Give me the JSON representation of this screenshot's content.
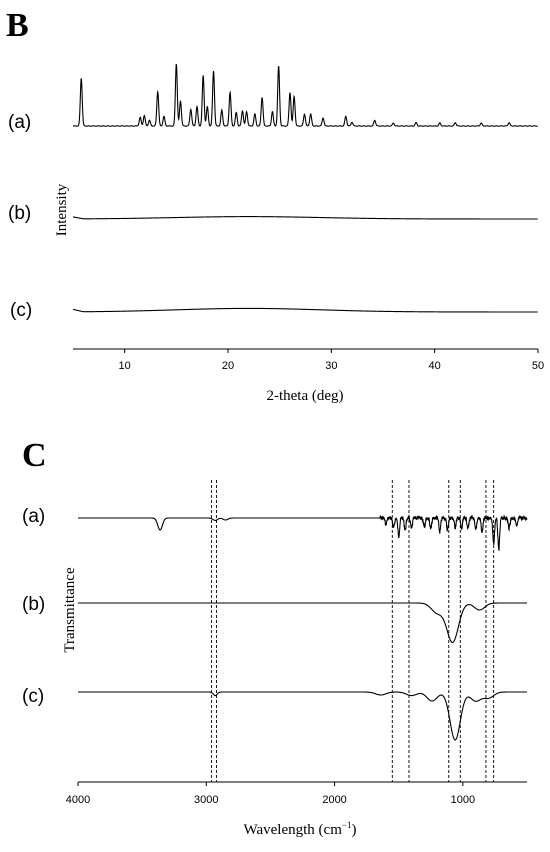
{
  "chart_data": [
    {
      "type": "line",
      "panel": "B",
      "xlabel": "2-theta (deg)",
      "ylabel": "Intensity",
      "xlim": [
        5,
        50
      ],
      "xticks": [
        10,
        20,
        30,
        40,
        50
      ],
      "series": [
        {
          "name": "(a)",
          "peaks": [
            {
              "x": 5.8,
              "y": 1.0
            },
            {
              "x": 11.5,
              "y": 0.18
            },
            {
              "x": 11.9,
              "y": 0.22
            },
            {
              "x": 12.4,
              "y": 0.12
            },
            {
              "x": 13.2,
              "y": 0.72
            },
            {
              "x": 13.8,
              "y": 0.2
            },
            {
              "x": 15.0,
              "y": 1.3
            },
            {
              "x": 15.4,
              "y": 0.52
            },
            {
              "x": 16.4,
              "y": 0.35
            },
            {
              "x": 17.0,
              "y": 0.4
            },
            {
              "x": 17.6,
              "y": 1.05
            },
            {
              "x": 18.0,
              "y": 0.4
            },
            {
              "x": 18.6,
              "y": 1.15
            },
            {
              "x": 19.4,
              "y": 0.33
            },
            {
              "x": 20.2,
              "y": 0.7
            },
            {
              "x": 20.8,
              "y": 0.28
            },
            {
              "x": 21.4,
              "y": 0.32
            },
            {
              "x": 21.8,
              "y": 0.3
            },
            {
              "x": 22.6,
              "y": 0.25
            },
            {
              "x": 23.3,
              "y": 0.6
            },
            {
              "x": 24.3,
              "y": 0.3
            },
            {
              "x": 24.9,
              "y": 1.25
            },
            {
              "x": 26.0,
              "y": 0.7
            },
            {
              "x": 26.4,
              "y": 0.62
            },
            {
              "x": 27.4,
              "y": 0.25
            },
            {
              "x": 28.0,
              "y": 0.25
            },
            {
              "x": 29.2,
              "y": 0.17
            },
            {
              "x": 31.4,
              "y": 0.2
            },
            {
              "x": 32.0,
              "y": 0.08
            },
            {
              "x": 34.2,
              "y": 0.12
            },
            {
              "x": 36.0,
              "y": 0.06
            },
            {
              "x": 38.2,
              "y": 0.07
            },
            {
              "x": 40.5,
              "y": 0.06
            },
            {
              "x": 42.0,
              "y": 0.07
            },
            {
              "x": 44.5,
              "y": 0.06
            },
            {
              "x": 47.2,
              "y": 0.07
            }
          ]
        },
        {
          "name": "(b)",
          "halo_center": 22,
          "halo_height": 0.06
        },
        {
          "name": "(c)",
          "halo_center": 22,
          "halo_height": 0.09
        }
      ]
    },
    {
      "type": "line",
      "panel": "C",
      "xlabel_main": "Wavelength (cm",
      "xlabel_sup": "−1",
      "xlabel_end": ")",
      "ylabel": "Transmittance",
      "xlim": [
        4000,
        500
      ],
      "xticks": [
        4000,
        3000,
        2000,
        1000
      ],
      "dashed_lines": [
        2960,
        2920,
        1550,
        1420,
        1110,
        1020,
        820,
        760
      ],
      "series": [
        {
          "name": "(a)",
          "bands": [
            {
              "x": 3360,
              "y": 0.6
            },
            {
              "x": 2930,
              "y": 0.12
            },
            {
              "x": 2850,
              "y": 0.1
            },
            {
              "x": 1600,
              "y": 0.3
            },
            {
              "x": 1540,
              "y": 0.5
            },
            {
              "x": 1500,
              "y": 0.9
            },
            {
              "x": 1450,
              "y": 0.6
            },
            {
              "x": 1400,
              "y": 0.55
            },
            {
              "x": 1300,
              "y": 0.4
            },
            {
              "x": 1250,
              "y": 0.55
            },
            {
              "x": 1180,
              "y": 0.7
            },
            {
              "x": 1120,
              "y": 0.6
            },
            {
              "x": 1060,
              "y": 0.45
            },
            {
              "x": 1010,
              "y": 0.55
            },
            {
              "x": 960,
              "y": 0.5
            },
            {
              "x": 900,
              "y": 0.6
            },
            {
              "x": 850,
              "y": 0.7
            },
            {
              "x": 760,
              "y": 1.3
            },
            {
              "x": 720,
              "y": 1.6
            },
            {
              "x": 640,
              "y": 0.5
            },
            {
              "x": 580,
              "y": 0.45
            }
          ]
        },
        {
          "name": "(b)",
          "bands": [
            {
              "x": 1080,
              "y": 1.4
            },
            {
              "x": 1200,
              "y": 0.35
            },
            {
              "x": 870,
              "y": 0.25
            }
          ]
        },
        {
          "name": "(c)",
          "bands": [
            {
              "x": 1640,
              "y": 0.1
            },
            {
              "x": 1400,
              "y": 0.12
            },
            {
              "x": 1240,
              "y": 0.3
            },
            {
              "x": 1060,
              "y": 1.6
            },
            {
              "x": 900,
              "y": 0.3
            },
            {
              "x": 800,
              "y": 0.2
            },
            {
              "x": 2930,
              "y": 0.12
            }
          ]
        }
      ]
    }
  ],
  "labels": {
    "panel_b": "B",
    "panel_c": "C",
    "trace_a": "(a)",
    "trace_b": "(b)",
    "trace_c": "(c)"
  }
}
